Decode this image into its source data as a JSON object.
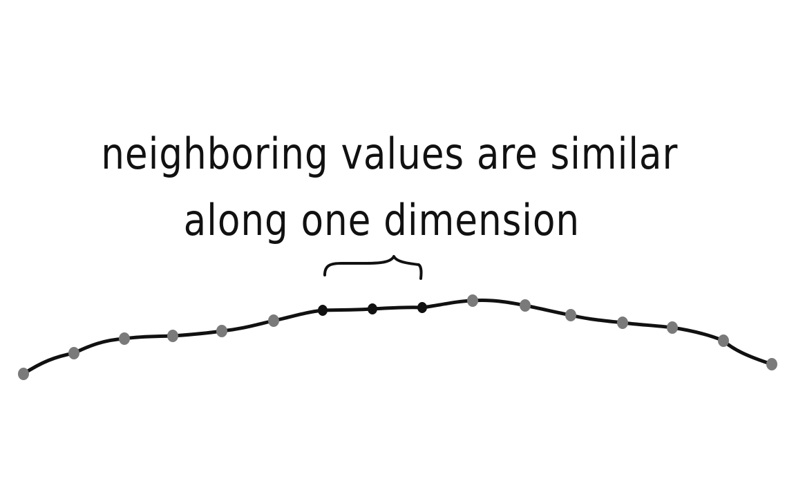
{
  "caption": {
    "line1": "neighboring values are similar",
    "line2": "along one dimension"
  },
  "colors": {
    "ink": "#111111",
    "point": "#7a7a7a",
    "highlight_point": "#111111"
  },
  "points": [
    {
      "highlighted": false
    },
    {
      "highlighted": false
    },
    {
      "highlighted": false
    },
    {
      "highlighted": false
    },
    {
      "highlighted": false
    },
    {
      "highlighted": false
    },
    {
      "highlighted": true
    },
    {
      "highlighted": true
    },
    {
      "highlighted": true
    },
    {
      "highlighted": false
    },
    {
      "highlighted": false
    },
    {
      "highlighted": false
    },
    {
      "highlighted": false
    },
    {
      "highlighted": false
    },
    {
      "highlighted": false
    },
    {
      "highlighted": false
    }
  ]
}
